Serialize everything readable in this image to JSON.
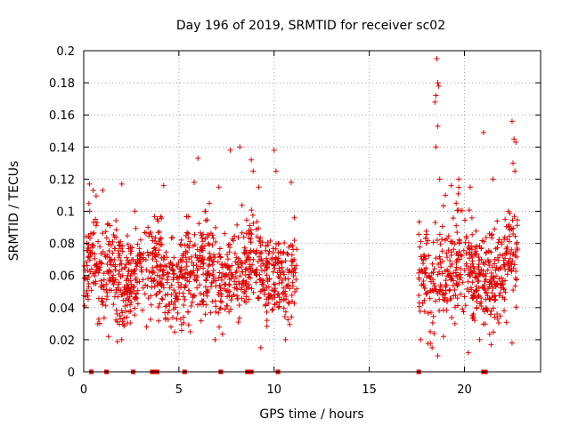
{
  "chart_data": {
    "type": "scatter",
    "title": "Day 196 of 2019, SRMTID for receiver sc02",
    "xlabel": "GPS time / hours",
    "ylabel": "SRMTID / TECUs",
    "xlim": [
      0,
      24
    ],
    "ylim": [
      0,
      0.2
    ],
    "grid": true,
    "marker": "+",
    "color": "#e00000",
    "x_ticks": [
      {
        "value": 0,
        "label": "0"
      },
      {
        "value": 5,
        "label": "5"
      },
      {
        "value": 10,
        "label": "10"
      },
      {
        "value": 15,
        "label": "15"
      },
      {
        "value": 20,
        "label": "20"
      }
    ],
    "y_ticks": [
      {
        "value": 0,
        "label": "0"
      },
      {
        "value": 0.02,
        "label": "0.02"
      },
      {
        "value": 0.04,
        "label": "0.04"
      },
      {
        "value": 0.06,
        "label": "0.06"
      },
      {
        "value": 0.08,
        "label": "0.08"
      },
      {
        "value": 0.1,
        "label": "0.1"
      },
      {
        "value": 0.12,
        "label": "0.12"
      },
      {
        "value": 0.14,
        "label": "0.14"
      },
      {
        "value": 0.16,
        "label": "0.16"
      },
      {
        "value": 0.18,
        "label": "0.18"
      },
      {
        "value": 0.2,
        "label": "0.2"
      }
    ],
    "series": [
      {
        "name": "SRMTID",
        "segments": [
          {
            "x_start": 0.0,
            "x_end": 11.2,
            "mean": 0.062,
            "spread": 0.02
          },
          {
            "x_start": 17.6,
            "x_end": 22.8,
            "mean": 0.064,
            "spread": 0.022
          }
        ],
        "points": [
          [
            18.55,
            0.195
          ],
          [
            18.6,
            0.18
          ],
          [
            18.65,
            0.178
          ],
          [
            18.5,
            0.172
          ],
          [
            18.45,
            0.168
          ],
          [
            18.6,
            0.153
          ],
          [
            18.5,
            0.14
          ],
          [
            21.0,
            0.149
          ],
          [
            22.5,
            0.156
          ],
          [
            22.6,
            0.145
          ],
          [
            22.7,
            0.143
          ],
          [
            22.55,
            0.13
          ],
          [
            22.65,
            0.125
          ],
          [
            8.2,
            0.14
          ],
          [
            10.0,
            0.138
          ],
          [
            7.7,
            0.138
          ],
          [
            6.0,
            0.133
          ],
          [
            8.8,
            0.132
          ],
          [
            10.1,
            0.125
          ],
          [
            8.9,
            0.125
          ],
          [
            0.3,
            0.117
          ],
          [
            0.5,
            0.113
          ],
          [
            1.0,
            0.113
          ],
          [
            2.0,
            0.117
          ],
          [
            4.2,
            0.116
          ],
          [
            5.8,
            0.118
          ],
          [
            9.2,
            0.115
          ],
          [
            10.9,
            0.118
          ],
          [
            7.1,
            0.115
          ],
          [
            19.7,
            0.12
          ],
          [
            21.5,
            0.12
          ],
          [
            18.7,
            0.12
          ],
          [
            19.3,
            0.116
          ],
          [
            20.3,
            0.115
          ],
          [
            6.6,
            0.105
          ],
          [
            6.4,
            0.1
          ],
          [
            22.3,
            0.1
          ],
          [
            19.0,
            0.11
          ],
          [
            18.2,
            0.025
          ],
          [
            18.6,
            0.01
          ],
          [
            17.7,
            0.02
          ],
          [
            18.9,
            0.022
          ],
          [
            2.0,
            0.02
          ],
          [
            1.3,
            0.022
          ],
          [
            6.9,
            0.02
          ],
          [
            9.3,
            0.015
          ],
          [
            10.6,
            0.02
          ],
          [
            20.8,
            0.02
          ],
          [
            22.5,
            0.018
          ],
          [
            21.4,
            0.017
          ],
          [
            20.2,
            0.012
          ],
          [
            19.5,
            0.03
          ],
          [
            3.3,
            0.028
          ],
          [
            5.6,
            0.025
          ]
        ],
        "zero_points": [
          0.4,
          1.2,
          2.6,
          3.6,
          3.75,
          3.85,
          5.3,
          7.2,
          8.6,
          8.8,
          10.2,
          17.6,
          21.0,
          21.1
        ]
      }
    ]
  }
}
